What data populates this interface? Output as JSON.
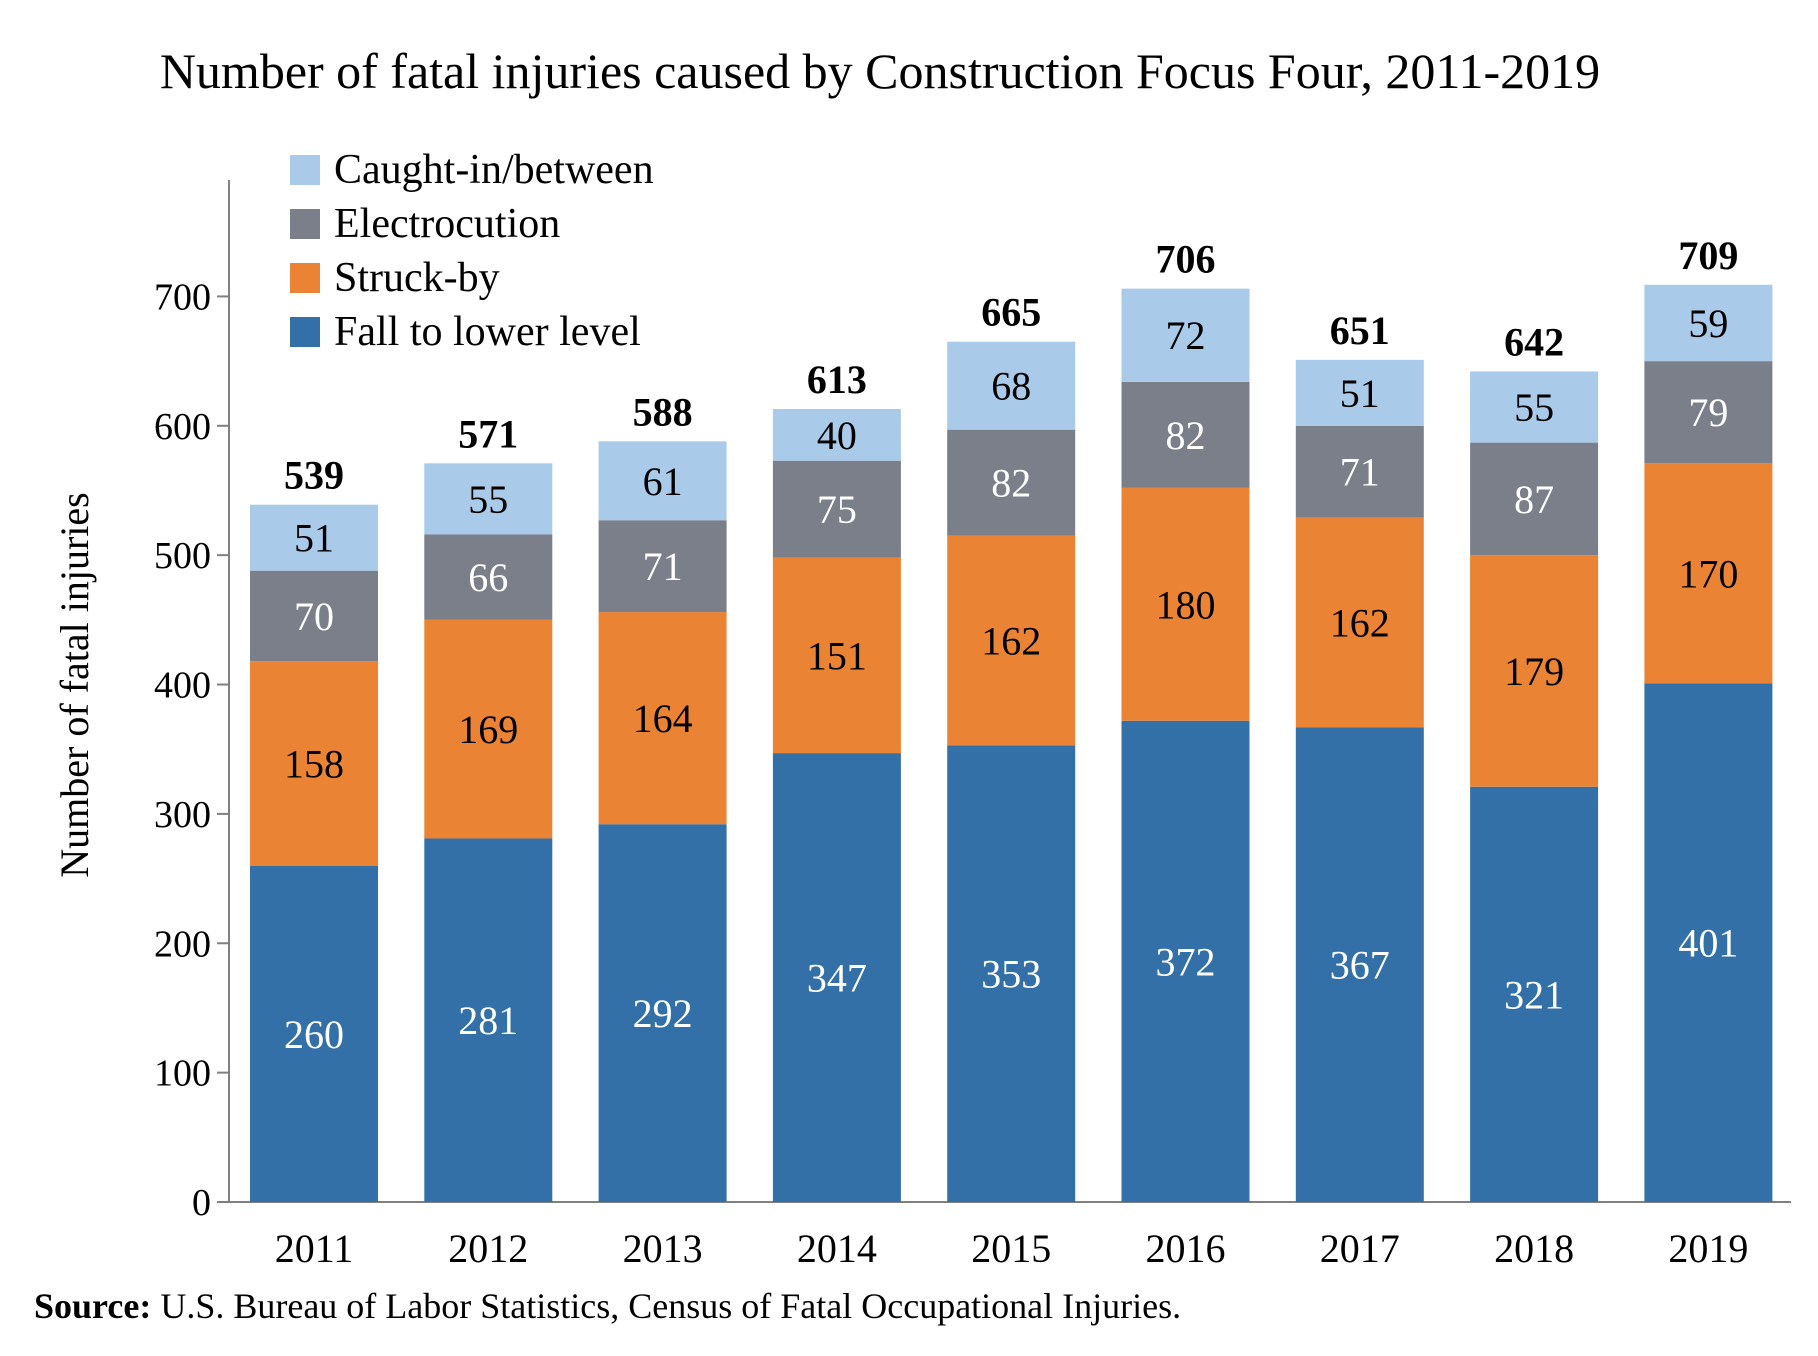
{
  "chart_data": {
    "type": "bar",
    "stacked": true,
    "title": "Number of fatal injuries caused by Construction Focus Four, 2011-2019",
    "ylabel": "Number of fatal injuries",
    "xlabel": "",
    "ylim": [
      0,
      790
    ],
    "yticks": [
      0,
      100,
      200,
      300,
      400,
      500,
      600,
      700
    ],
    "grid": false,
    "legend_position": "top-left",
    "categories": [
      "2011",
      "2012",
      "2013",
      "2014",
      "2015",
      "2016",
      "2017",
      "2018",
      "2019"
    ],
    "series": [
      {
        "name": "Fall to lower level",
        "color": "#3470a8",
        "label_color": "#ffffff",
        "values": [
          260,
          281,
          292,
          347,
          353,
          372,
          367,
          321,
          401
        ]
      },
      {
        "name": "Struck-by",
        "color": "#ea8434",
        "label_color": "#000000",
        "values": [
          158,
          169,
          164,
          151,
          162,
          180,
          162,
          179,
          170
        ]
      },
      {
        "name": "Electrocution",
        "color": "#7b7f89",
        "label_color": "#ffffff",
        "values": [
          70,
          66,
          71,
          75,
          82,
          82,
          71,
          87,
          79
        ]
      },
      {
        "name": "Caught-in/between",
        "color": "#a9cae9",
        "label_color": "#000000",
        "values": [
          51,
          55,
          61,
          40,
          68,
          72,
          51,
          55,
          59
        ]
      }
    ],
    "totals": [
      539,
      571,
      588,
      613,
      665,
      706,
      651,
      642,
      709
    ],
    "legend_order": [
      "Caught-in/between",
      "Electrocution",
      "Struck-by",
      "Fall to lower level"
    ]
  },
  "source": {
    "label": "Source:",
    "text": " U.S. Bureau of Labor Statistics, Census of Fatal Occupational Injuries."
  }
}
